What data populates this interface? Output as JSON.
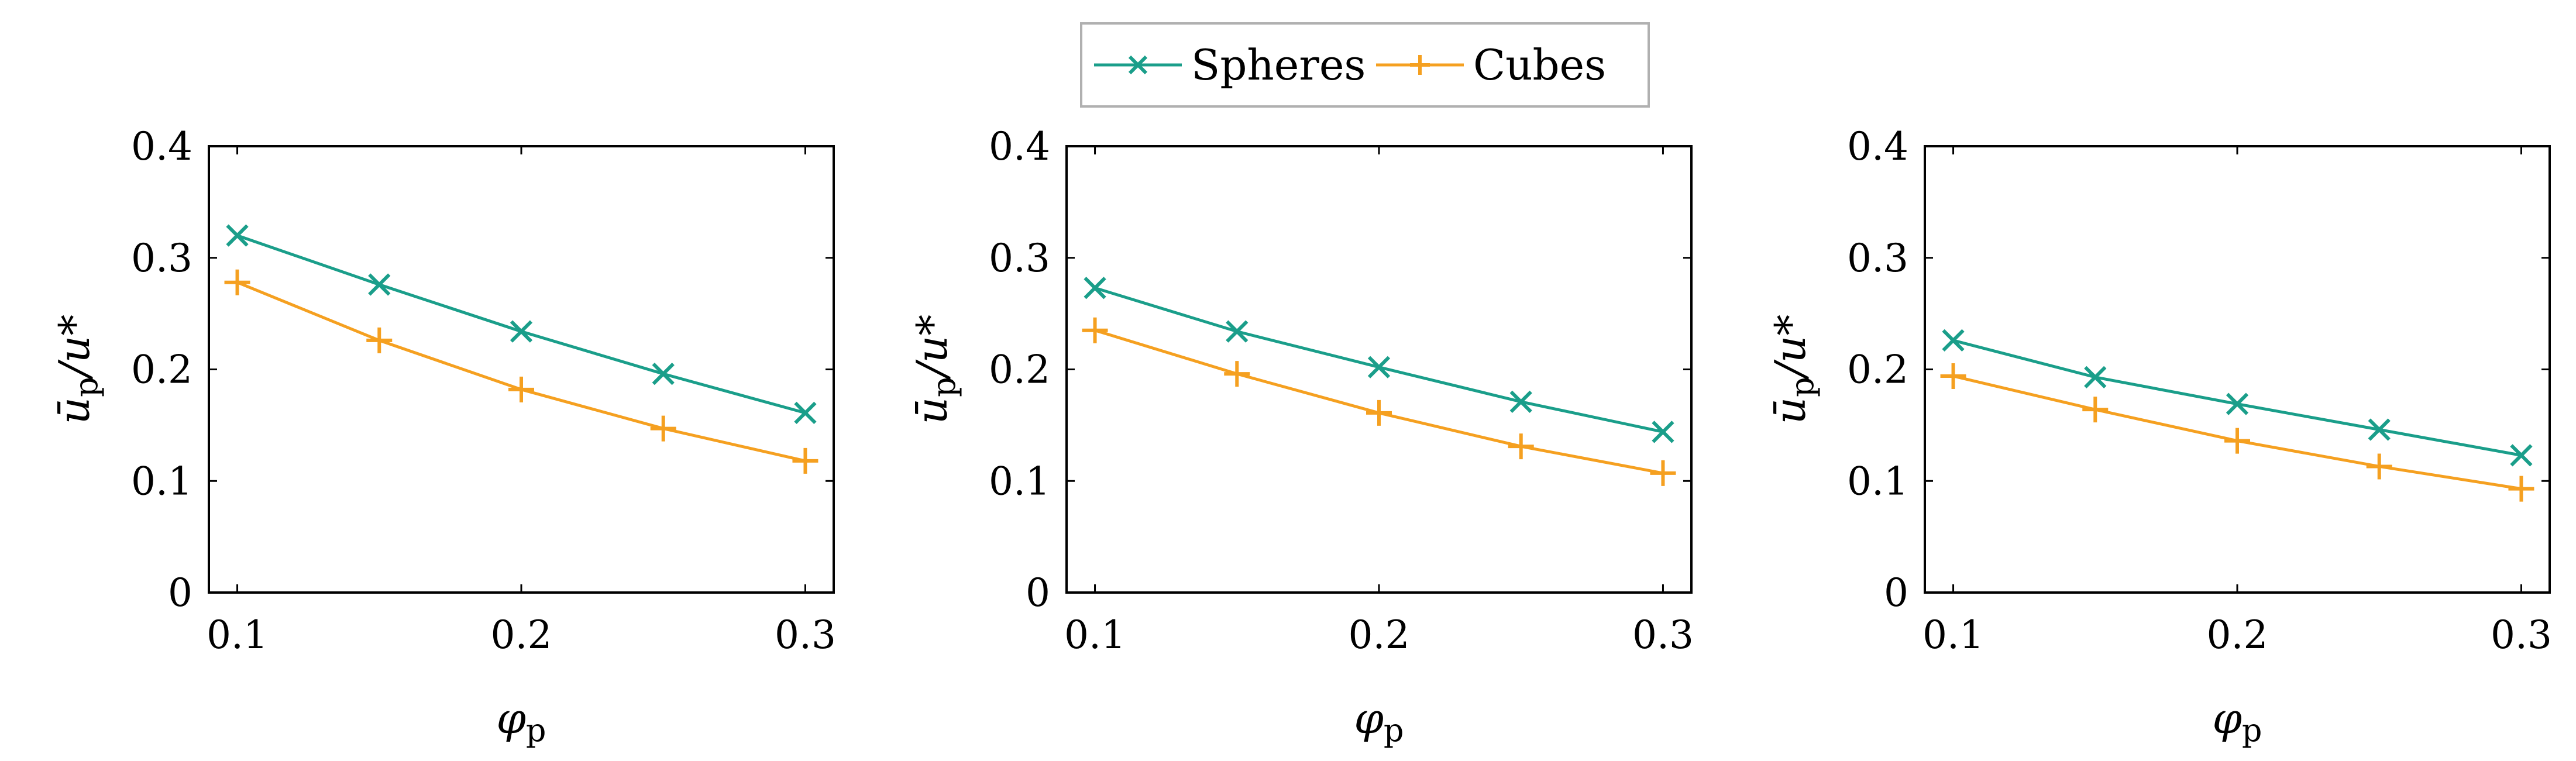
{
  "legend": {
    "entries": [
      {
        "label": "Spheres",
        "color": "#1a9e8a",
        "marker": "x-mark-icon"
      },
      {
        "label": "Cubes",
        "color": "#f5a020",
        "marker": "plus-mark-icon"
      }
    ]
  },
  "chart_data": [
    {
      "type": "line",
      "xlabel": "φ",
      "xlabel_sub": "p",
      "ylabel": "ū",
      "ylabel_sub": "p",
      "ylabel_suffix": "/u*",
      "xlim": [
        0.09,
        0.31
      ],
      "ylim": [
        0,
        0.4
      ],
      "xticks": [
        0.1,
        0.2,
        0.3
      ],
      "xtick_labels": [
        "0.1",
        "0.2",
        "0.3"
      ],
      "yticks": [
        0,
        0.1,
        0.2,
        0.3,
        0.4
      ],
      "ytick_labels": [
        "0",
        "0.1",
        "0.2",
        "0.3",
        "0.4"
      ],
      "x": [
        0.1,
        0.15,
        0.2,
        0.25,
        0.3
      ],
      "series": [
        {
          "name": "Spheres",
          "values": [
            0.32,
            0.276,
            0.234,
            0.196,
            0.161
          ]
        },
        {
          "name": "Cubes",
          "values": [
            0.278,
            0.226,
            0.182,
            0.147,
            0.118
          ]
        }
      ]
    },
    {
      "type": "line",
      "xlabel": "φ",
      "xlabel_sub": "p",
      "ylabel": "ū",
      "ylabel_sub": "p",
      "ylabel_suffix": "/u*",
      "xlim": [
        0.09,
        0.31
      ],
      "ylim": [
        0,
        0.4
      ],
      "xticks": [
        0.1,
        0.2,
        0.3
      ],
      "xtick_labels": [
        "0.1",
        "0.2",
        "0.3"
      ],
      "yticks": [
        0,
        0.1,
        0.2,
        0.3,
        0.4
      ],
      "ytick_labels": [
        "0",
        "0.1",
        "0.2",
        "0.3",
        "0.4"
      ],
      "x": [
        0.1,
        0.15,
        0.2,
        0.25,
        0.3
      ],
      "series": [
        {
          "name": "Spheres",
          "values": [
            0.273,
            0.234,
            0.202,
            0.171,
            0.144
          ]
        },
        {
          "name": "Cubes",
          "values": [
            0.235,
            0.196,
            0.161,
            0.131,
            0.107
          ]
        }
      ]
    },
    {
      "type": "line",
      "xlabel": "φ",
      "xlabel_sub": "p",
      "ylabel": "ū",
      "ylabel_sub": "p",
      "ylabel_suffix": "/u*",
      "xlim": [
        0.09,
        0.31
      ],
      "ylim": [
        0,
        0.4
      ],
      "xticks": [
        0.1,
        0.2,
        0.3
      ],
      "xtick_labels": [
        "0.1",
        "0.2",
        "0.3"
      ],
      "yticks": [
        0,
        0.1,
        0.2,
        0.3,
        0.4
      ],
      "ytick_labels": [
        "0",
        "0.1",
        "0.2",
        "0.3",
        "0.4"
      ],
      "x": [
        0.1,
        0.15,
        0.2,
        0.25,
        0.3
      ],
      "series": [
        {
          "name": "Spheres",
          "values": [
            0.226,
            0.193,
            0.169,
            0.146,
            0.123
          ]
        },
        {
          "name": "Cubes",
          "values": [
            0.194,
            0.164,
            0.136,
            0.113,
            0.093
          ]
        }
      ]
    }
  ]
}
